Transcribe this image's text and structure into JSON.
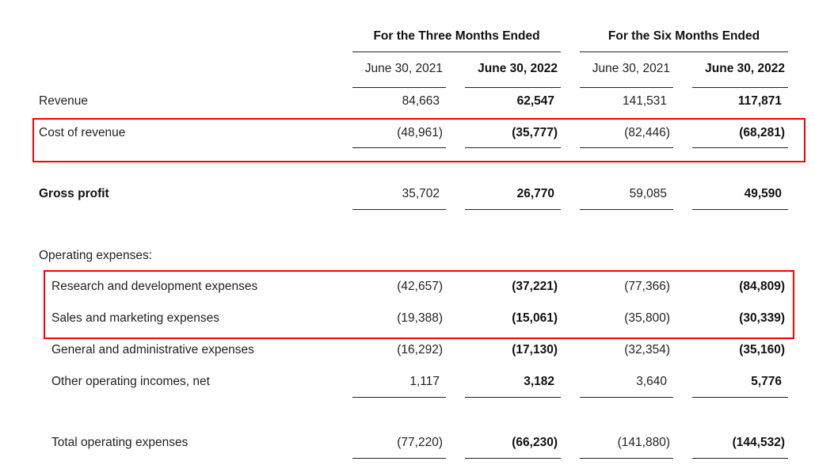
{
  "header": {
    "groups": [
      "For the Three Months Ended",
      "For the Six Months Ended"
    ],
    "columns": [
      "June 30, 2021",
      "June 30, 2022",
      "June 30, 2021",
      "June 30, 2022"
    ]
  },
  "rows": [
    {
      "label": "Revenue",
      "values": [
        "84,663",
        "62,547",
        "141,531",
        "117,871"
      ]
    },
    {
      "label": "Cost of revenue",
      "values": [
        "(48,961)",
        "(35,777)",
        "(82,446)",
        "(68,281)"
      ]
    },
    {
      "label": "Gross profit",
      "values": [
        "35,702",
        "26,770",
        "59,085",
        "49,590"
      ]
    },
    {
      "label": "Operating expenses:",
      "values": []
    },
    {
      "label": "Research and development expenses",
      "values": [
        "(42,657)",
        "(37,221)",
        "(77,366)",
        "(84,809)"
      ]
    },
    {
      "label": "Sales and marketing expenses",
      "values": [
        "(19,388)",
        "(15,061)",
        "(35,800)",
        "(30,339)"
      ]
    },
    {
      "label": "General and administrative expenses",
      "values": [
        "(16,292)",
        "(17,130)",
        "(32,354)",
        "(35,160)"
      ]
    },
    {
      "label": "Other operating incomes, net",
      "values": [
        "1,117",
        "3,182",
        "3,640",
        "5,776"
      ]
    },
    {
      "label": "Total operating expenses",
      "values": [
        "(77,220)",
        "(66,230)",
        "(141,880)",
        "(144,532)"
      ]
    }
  ],
  "highlight_color": "#ff0000"
}
